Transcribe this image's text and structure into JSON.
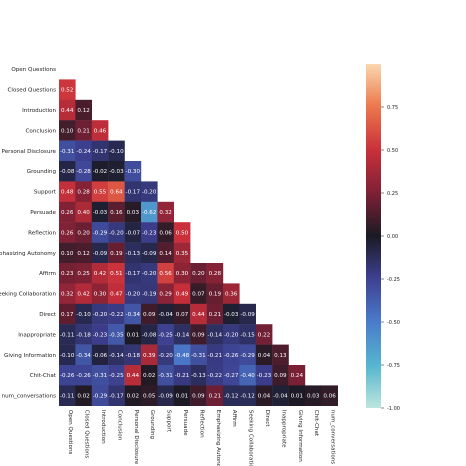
{
  "chart_data": {
    "type": "heatmap",
    "title": "",
    "labels": [
      "Open Questions",
      "Closed Questions",
      "Introduction",
      "Conclusion",
      "Personal Disclosure",
      "Grounding",
      "Support",
      "Persuade",
      "Reflection",
      "Emphasizing Autonomy",
      "Affirm",
      "Seeking Collaboration",
      "Direct",
      "Inappropriate",
      "Giving Information",
      "Chit-Chat",
      "num_conversations"
    ],
    "row_labels": [
      "Open Questions",
      "Closed Questions",
      "Introduction",
      "Conclusion",
      "Personal Disclosure",
      "Grounding",
      "Support",
      "Persuade",
      "Reflection",
      "mphasizing Autonomy",
      "Affirm",
      "eeking Collaboration",
      "Direct",
      "Inappropriate",
      "Giving Information",
      "Chit-Chat",
      "num_conversations"
    ],
    "col_labels": [
      "Open Questions",
      "Closed Questions",
      "Introduction",
      "Conclusion",
      "Personal Disclosure",
      "Grounding",
      "Support",
      "Persuade",
      "Reflection",
      "Emphasizing Autonomy",
      "Affirm",
      "Seeking Collaboratio",
      "Direct",
      "Inappropriate",
      "Giving Information",
      "Chit-Chat",
      "num_conversations"
    ],
    "matrix": [
      [],
      [
        0.52
      ],
      [
        0.44,
        0.12
      ],
      [
        0.1,
        0.21,
        0.46
      ],
      [
        -0.31,
        -0.24,
        -0.17,
        -0.1
      ],
      [
        -0.08,
        -0.28,
        -0.02,
        -0.03,
        -0.3
      ],
      [
        0.48,
        0.28,
        0.55,
        0.64,
        -0.17,
        -0.2
      ],
      [
        0.26,
        0.4,
        -0.03,
        0.16,
        0.03,
        -0.62,
        0.32
      ],
      [
        0.26,
        0.2,
        -0.29,
        -0.2,
        -0.07,
        -0.23,
        0.06,
        0.5
      ],
      [
        0.1,
        0.12,
        -0.09,
        0.19,
        -0.13,
        -0.09,
        0.14,
        0.35
      ],
      [
        0.23,
        0.25,
        0.42,
        0.51,
        -0.17,
        -0.2,
        0.56,
        0.3,
        0.2,
        0.28
      ],
      [
        0.32,
        0.42,
        0.3,
        0.47,
        -0.2,
        -0.19,
        0.29,
        0.49,
        0.07,
        0.19,
        0.36
      ],
      [
        0.17,
        -0.1,
        -0.2,
        -0.22,
        -0.34,
        0.09,
        -0.04,
        0.07,
        0.44,
        0.21,
        -0.03,
        -0.09
      ],
      [
        -0.11,
        -0.18,
        -0.23,
        -0.35,
        0.01,
        -0.08,
        -0.25,
        -0.14,
        0.09,
        -0.14,
        -0.2,
        -0.15,
        0.22
      ],
      [
        -0.1,
        -0.34,
        -0.06,
        -0.14,
        -0.18,
        0.39,
        -0.2,
        -0.48,
        -0.31,
        -0.21,
        -0.26,
        -0.29,
        0.04,
        0.13
      ],
      [
        -0.26,
        -0.26,
        -0.31,
        -0.25,
        0.44,
        0.02,
        -0.31,
        -0.21,
        -0.13,
        -0.22,
        -0.27,
        -0.4,
        -0.23,
        0.09,
        0.24
      ],
      [
        -0.11,
        0.02,
        -0.29,
        -0.17,
        0.02,
        0.05,
        -0.09,
        0.01,
        0.09,
        0.21,
        -0.12,
        -0.12,
        0.04,
        -0.04,
        0.01,
        0.03,
        0.06
      ]
    ],
    "colorbar": {
      "range": [
        -1.0,
        1.0
      ],
      "ticks": [
        "0.75",
        "0.50",
        "0.25",
        "0.00",
        "-0.25",
        "-0.50",
        "-0.75",
        "-1.00"
      ],
      "tick_values": [
        0.75,
        0.5,
        0.25,
        0.0,
        -0.25,
        -0.5,
        -0.75,
        -1.0
      ],
      "colormap": "icefire"
    },
    "mask": "upper-triangle"
  }
}
